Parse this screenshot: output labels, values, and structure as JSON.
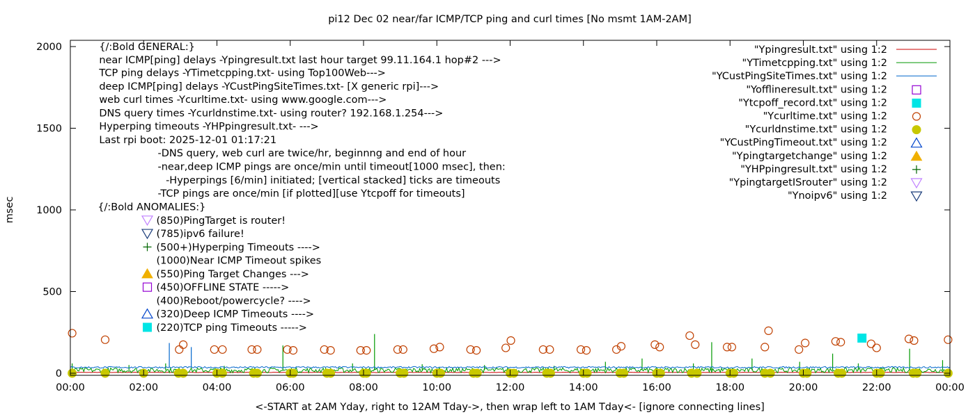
{
  "chart_data": {
    "type": "scatter",
    "title": "pi12 Dec 02  near/far ICMP/TCP ping and curl times [No msmt 1AM-2AM]",
    "xlabel": "<-START at 2AM Yday, right to 12AM Tday->, then wrap left to 1AM Tday<- [ignore connecting lines]",
    "ylabel": "msec",
    "xlim": [
      0,
      24
    ],
    "ylim": [
      0,
      2050
    ],
    "x_ticks": [
      0,
      2,
      4,
      6,
      8,
      10,
      12,
      14,
      16,
      18,
      20,
      22,
      24
    ],
    "x_tick_labels": [
      "00:00",
      "02:00",
      "04:00",
      "06:00",
      "08:00",
      "10:00",
      "12:00",
      "14:00",
      "16:00",
      "18:00",
      "20:00",
      "22:00",
      "00:00"
    ],
    "y_ticks": [
      0,
      500,
      1000,
      1500,
      2000
    ],
    "y_tick_labels": [
      "0",
      "500",
      "1000",
      "1500",
      "2000"
    ],
    "legend_position": "top-right",
    "series": [
      {
        "name": "\"Ypingresult.txt\" using 1:2",
        "style": "line",
        "color": "#cc0000",
        "base": 5,
        "noise": 2,
        "spikes": []
      },
      {
        "name": "\"YTimetcpping.txt\" using 1:2",
        "style": "line",
        "color": "#009900",
        "base": 18,
        "noise": 30,
        "spikes": [
          [
            0.05,
            60
          ],
          [
            1.6,
            50
          ],
          [
            2.6,
            60
          ],
          [
            4.2,
            45
          ],
          [
            5.8,
            170
          ],
          [
            7.7,
            60
          ],
          [
            8.3,
            240
          ],
          [
            9.6,
            55
          ],
          [
            11.3,
            50
          ],
          [
            13.2,
            45
          ],
          [
            14.6,
            70
          ],
          [
            15.6,
            90
          ],
          [
            17.0,
            60
          ],
          [
            17.5,
            190
          ],
          [
            18.6,
            90
          ],
          [
            19.9,
            70
          ],
          [
            20.8,
            120
          ],
          [
            21.5,
            60
          ],
          [
            22.9,
            150
          ],
          [
            23.8,
            80
          ]
        ]
      },
      {
        "name": "\"YCustPingSiteTimes.txt\" using 1:2",
        "style": "line",
        "color": "#0066cc",
        "base": 36,
        "noise": 10,
        "spikes": [
          [
            2.7,
            185
          ],
          [
            3.3,
            160
          ]
        ]
      },
      {
        "name": "\"Yofflineresult.txt\" using 1:2",
        "style": "marker",
        "marker": "square-open",
        "color": "#9400d3",
        "points": []
      },
      {
        "name": "\"Ytcpoff_record.txt\" using 1:2",
        "style": "marker",
        "marker": "square-filled",
        "color": "#00e5e5",
        "points": [
          [
            21.6,
            215
          ]
        ]
      },
      {
        "name": "\"Ycurltime.txt\" using 1:2",
        "style": "marker",
        "marker": "circle-open",
        "color": "#c04000",
        "points": [
          [
            0.05,
            245
          ],
          [
            0.95,
            205
          ],
          [
            2.97,
            145
          ],
          [
            3.08,
            175
          ],
          [
            3.93,
            145
          ],
          [
            4.15,
            145
          ],
          [
            4.95,
            145
          ],
          [
            5.1,
            145
          ],
          [
            5.92,
            145
          ],
          [
            6.08,
            140
          ],
          [
            6.93,
            145
          ],
          [
            7.1,
            140
          ],
          [
            7.92,
            140
          ],
          [
            8.08,
            140
          ],
          [
            8.93,
            145
          ],
          [
            9.08,
            145
          ],
          [
            9.92,
            150
          ],
          [
            10.08,
            160
          ],
          [
            10.92,
            145
          ],
          [
            11.08,
            140
          ],
          [
            11.88,
            155
          ],
          [
            12.02,
            200
          ],
          [
            12.9,
            145
          ],
          [
            13.08,
            145
          ],
          [
            13.93,
            145
          ],
          [
            14.08,
            140
          ],
          [
            14.9,
            145
          ],
          [
            15.03,
            165
          ],
          [
            15.95,
            175
          ],
          [
            16.08,
            160
          ],
          [
            16.9,
            230
          ],
          [
            17.05,
            175
          ],
          [
            17.92,
            160
          ],
          [
            18.05,
            160
          ],
          [
            18.95,
            160
          ],
          [
            19.05,
            260
          ],
          [
            19.88,
            145
          ],
          [
            20.05,
            185
          ],
          [
            20.88,
            195
          ],
          [
            21.02,
            190
          ],
          [
            21.85,
            180
          ],
          [
            22.0,
            155
          ],
          [
            22.88,
            210
          ],
          [
            23.02,
            200
          ],
          [
            23.95,
            205
          ]
        ]
      },
      {
        "name": "\"Ycurldnstime.txt\" using 1:2",
        "style": "marker",
        "marker": "circle-filled",
        "color": "#c8c800",
        "points": [
          [
            0.05,
            0
          ],
          [
            0.95,
            0
          ],
          [
            2.0,
            0
          ],
          [
            2.95,
            0
          ],
          [
            3.08,
            0
          ],
          [
            4.0,
            0
          ],
          [
            4.15,
            0
          ],
          [
            5.0,
            0
          ],
          [
            5.1,
            0
          ],
          [
            6.0,
            0
          ],
          [
            6.08,
            0
          ],
          [
            7.0,
            0
          ],
          [
            7.1,
            0
          ],
          [
            8.0,
            0
          ],
          [
            8.08,
            0
          ],
          [
            9.0,
            0
          ],
          [
            9.1,
            0
          ],
          [
            10.0,
            0
          ],
          [
            10.1,
            0
          ],
          [
            11.0,
            0
          ],
          [
            11.1,
            0
          ],
          [
            12.0,
            0
          ],
          [
            12.1,
            0
          ],
          [
            13.0,
            0
          ],
          [
            13.1,
            0
          ],
          [
            14.0,
            0
          ],
          [
            14.1,
            0
          ],
          [
            15.0,
            0
          ],
          [
            15.1,
            0
          ],
          [
            16.0,
            0
          ],
          [
            16.1,
            0
          ],
          [
            16.95,
            0
          ],
          [
            17.1,
            0
          ],
          [
            18.0,
            0
          ],
          [
            18.1,
            0
          ],
          [
            18.95,
            0
          ],
          [
            19.1,
            0
          ],
          [
            20.0,
            0
          ],
          [
            20.1,
            0
          ],
          [
            20.95,
            0
          ],
          [
            21.05,
            0
          ],
          [
            22.0,
            0
          ],
          [
            22.1,
            0
          ],
          [
            23.0,
            0
          ],
          [
            23.1,
            0
          ],
          [
            23.95,
            0
          ]
        ]
      },
      {
        "name": "\"YCustPingTimeout.txt\" using 1:2",
        "style": "marker",
        "marker": "triangle-up-open",
        "color": "#0044cc",
        "points": []
      },
      {
        "name": "\"Ypingtargetchange\" using 1:2",
        "style": "marker",
        "marker": "triangle-up-filled",
        "color": "#f0b000",
        "points": []
      },
      {
        "name": "\"YHPpingresult.txt\" using 1:2",
        "style": "marker",
        "marker": "plus",
        "color": "#006600",
        "points": []
      },
      {
        "name": "\"YpingtargetISrouter\" using 1:2",
        "style": "marker",
        "marker": "triangle-down-open",
        "color": "#c080ff",
        "points": []
      },
      {
        "name": "\"Ynoipv6\" using 1:2",
        "style": "marker",
        "marker": "triangle-down-open",
        "color": "#1a3c7a",
        "points": []
      }
    ],
    "annotations": {
      "general": [
        {
          "text": "{/:Bold GENERAL:}",
          "x": 0.5,
          "y": 2000,
          "marker": null
        },
        {
          "text": "near ICMP[ping] delays -Ypingresult.txt last hour target 99.11.164.1 hop#2 --->",
          "x": 0.5,
          "y": 1920,
          "marker": null
        },
        {
          "text": "TCP ping delays -YTimetcpping.txt- using Top100Web--->",
          "x": 0.5,
          "y": 1840,
          "marker": null
        },
        {
          "text": "deep ICMP[ping] delays -YCustPingSiteTimes.txt- [X generic rpi]--->",
          "x": 0.5,
          "y": 1758,
          "marker": null
        },
        {
          "text": "web curl times -Ycurltime.txt- using www.google.com--->",
          "x": 0.5,
          "y": 1676,
          "marker": null
        },
        {
          "text": "DNS query times -Ycurldnstime.txt- using router? 192.168.1.254--->",
          "x": 0.5,
          "y": 1594,
          "marker": null
        },
        {
          "text": "Hyperping timeouts -YHPpingresult.txt- --->",
          "x": 0.5,
          "y": 1512,
          "marker": null
        },
        {
          "text": "Last rpi boot: 2025-12-01 01:17:21",
          "x": 0.5,
          "y": 1430,
          "marker": null
        },
        {
          "text": "-DNS query, web curl are twice/hr, beginnng and end of hour",
          "x": 2.1,
          "y": 1348,
          "marker": null
        },
        {
          "text": "-near,deep ICMP pings are once/min until timeout[1000 msec], then:",
          "x": 2.1,
          "y": 1266,
          "marker": null
        },
        {
          "text": "-Hyperpings [6/min] initiated; [vertical stacked] ticks are timeouts",
          "x": 2.32,
          "y": 1184,
          "marker": null
        },
        {
          "text": "-TCP pings are once/min [if plotted][use Ytcpoff for timeouts]",
          "x": 2.1,
          "y": 1102,
          "marker": null
        }
      ],
      "anomalies": [
        {
          "text": "{/:Bold ANOMALIES:}",
          "x": 0.5,
          "y": 1020,
          "marker": null,
          "color": null
        },
        {
          "text": "(850)PingTarget is router!",
          "x": 2.1,
          "y": 937,
          "marker": "triangle-down-open",
          "color": "#c080ff"
        },
        {
          "text": "(785)ipv6 failure!",
          "x": 2.1,
          "y": 855,
          "marker": "triangle-down-open",
          "color": "#1a3c7a"
        },
        {
          "text": "(500+)Hyperping Timeouts ---->",
          "x": 2.1,
          "y": 773,
          "marker": "plus",
          "color": "#006600"
        },
        {
          "text": "(1000)Near ICMP Timeout spikes",
          "x": 2.1,
          "y": 691,
          "marker": null,
          "color": null
        },
        {
          "text": "(550)Ping Target Changes --->",
          "x": 2.1,
          "y": 609,
          "marker": "triangle-up-filled",
          "color": "#f0b000"
        },
        {
          "text": "(450)OFFLINE STATE ----->",
          "x": 2.1,
          "y": 527,
          "marker": "square-open",
          "color": "#9400d3"
        },
        {
          "text": "(400)Reboot/powercycle? ---->",
          "x": 2.1,
          "y": 445,
          "marker": null,
          "color": null
        },
        {
          "text": "(320)Deep ICMP Timeouts ---->",
          "x": 2.1,
          "y": 363,
          "marker": "triangle-up-open",
          "color": "#0044cc"
        },
        {
          "text": "(220)TCP ping Timeouts ----->",
          "x": 2.1,
          "y": 281,
          "marker": "square-filled",
          "color": "#00e5e5"
        }
      ]
    }
  }
}
